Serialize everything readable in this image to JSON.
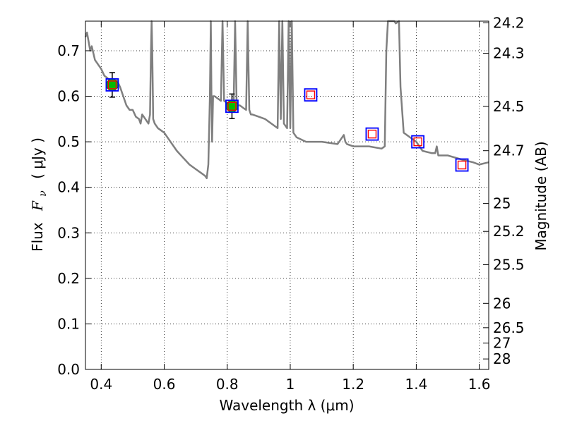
{
  "chart_data": {
    "type": "scatter",
    "xlabel": "Wavelength  λ (μm)",
    "ylabel_prefix": "Flux",
    "ylabel_symbol": "F",
    "ylabel_subscript": "ν",
    "ylabel_unit": "( μJy )",
    "y2label": "Magnitude (AB)",
    "xlim": [
      0.35,
      1.63
    ],
    "ylim": [
      0.0,
      0.765
    ],
    "grid": true,
    "x_ticks": [
      0.4,
      0.6,
      0.8,
      1.0,
      1.2,
      1.4,
      1.6
    ],
    "x_tick_labels": [
      "0.4",
      "0.6",
      "0.8",
      "1",
      "1.2",
      "1.4",
      "1.6"
    ],
    "y_ticks": [
      0.0,
      0.1,
      0.2,
      0.3,
      0.4,
      0.5,
      0.6,
      0.7
    ],
    "y_tick_labels": [
      "0.0",
      "0.1",
      "0.2",
      "0.3",
      "0.4",
      "0.5",
      "0.6",
      "0.7"
    ],
    "y2_ticks": [
      {
        "label": "24.2",
        "flux": 0.7615
      },
      {
        "label": "24.3",
        "flux": 0.6945
      },
      {
        "label": "24.5",
        "flux": 0.5777
      },
      {
        "label": "24.7",
        "flux": 0.4805
      },
      {
        "label": "25",
        "flux": 0.3645
      },
      {
        "label": "25.2",
        "flux": 0.3032
      },
      {
        "label": "25.5",
        "flux": 0.23
      },
      {
        "label": "26",
        "flux": 0.1451
      },
      {
        "label": "26.5",
        "flux": 0.0916
      },
      {
        "label": "27",
        "flux": 0.0578
      },
      {
        "label": "28",
        "flux": 0.023
      }
    ],
    "colors": {
      "model": "#7f7f7f",
      "observed_fill": "#00bb00",
      "box_edge": "#0000ff",
      "inner_edge": "#ff0000",
      "errorbar": "#000000",
      "grid": "#000000"
    },
    "model_spectrum": {
      "x": [
        0.35,
        0.355,
        0.36,
        0.365,
        0.37,
        0.38,
        0.39,
        0.4,
        0.41,
        0.42,
        0.43,
        0.44,
        0.45,
        0.46,
        0.47,
        0.48,
        0.49,
        0.5,
        0.51,
        0.52,
        0.525,
        0.53,
        0.54,
        0.55,
        0.555,
        0.558,
        0.56,
        0.562,
        0.565,
        0.57,
        0.58,
        0.6,
        0.62,
        0.64,
        0.66,
        0.68,
        0.7,
        0.72,
        0.73,
        0.735,
        0.74,
        0.745,
        0.748,
        0.75,
        0.752,
        0.755,
        0.76,
        0.77,
        0.78,
        0.785,
        0.79,
        0.8,
        0.81,
        0.82,
        0.825,
        0.83,
        0.84,
        0.85,
        0.86,
        0.865,
        0.87,
        0.875,
        0.88,
        0.9,
        0.92,
        0.94,
        0.96,
        0.965,
        0.97,
        0.975,
        0.98,
        0.99,
        0.995,
        1.0,
        1.005,
        1.01,
        1.02,
        1.05,
        1.08,
        1.1,
        1.15,
        1.17,
        1.175,
        1.18,
        1.2,
        1.25,
        1.29,
        1.3,
        1.305,
        1.31,
        1.33,
        1.335,
        1.345,
        1.35,
        1.36,
        1.38,
        1.4,
        1.42,
        1.45,
        1.46,
        1.465,
        1.47,
        1.5,
        1.55,
        1.58,
        1.6,
        1.63
      ],
      "y": [
        0.73,
        0.74,
        0.72,
        0.7,
        0.71,
        0.68,
        0.67,
        0.66,
        0.645,
        0.64,
        0.63,
        0.62,
        0.635,
        0.62,
        0.6,
        0.58,
        0.57,
        0.57,
        0.555,
        0.55,
        0.54,
        0.56,
        0.55,
        0.54,
        0.56,
        0.7,
        0.765,
        0.7,
        0.55,
        0.54,
        0.53,
        0.52,
        0.5,
        0.48,
        0.465,
        0.45,
        0.44,
        0.43,
        0.425,
        0.42,
        0.45,
        0.6,
        0.765,
        0.6,
        0.5,
        0.6,
        0.6,
        0.595,
        0.59,
        0.765,
        0.59,
        0.585,
        0.58,
        0.57,
        0.765,
        0.58,
        0.58,
        0.575,
        0.57,
        0.765,
        0.57,
        0.56,
        0.56,
        0.555,
        0.55,
        0.54,
        0.53,
        0.765,
        0.55,
        0.765,
        0.54,
        0.53,
        0.765,
        0.53,
        0.765,
        0.52,
        0.51,
        0.5,
        0.5,
        0.5,
        0.495,
        0.515,
        0.5,
        0.495,
        0.49,
        0.49,
        0.485,
        0.49,
        0.7,
        0.765,
        0.765,
        0.76,
        0.765,
        0.62,
        0.52,
        0.51,
        0.5,
        0.48,
        0.475,
        0.475,
        0.49,
        0.47,
        0.47,
        0.46,
        0.455,
        0.45,
        0.455
      ]
    },
    "observed_points": {
      "x": [
        0.435,
        0.815
      ],
      "y": [
        0.625,
        0.578
      ],
      "err": [
        0.027,
        0.027
      ]
    },
    "model_bands": {
      "x": [
        0.435,
        0.815,
        1.065,
        1.26,
        1.405,
        1.545
      ],
      "y": [
        0.625,
        0.578,
        0.603,
        0.517,
        0.5,
        0.449
      ]
    }
  }
}
